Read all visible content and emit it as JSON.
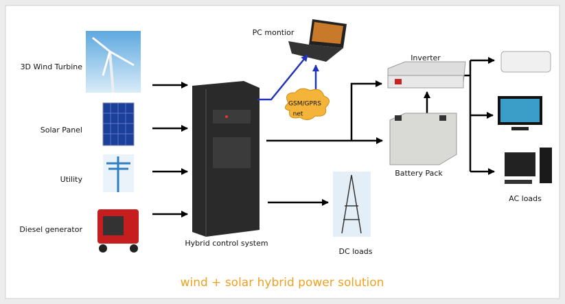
{
  "nodes": {
    "wind": {
      "label": "3D Wind Turbine"
    },
    "solar": {
      "label": "Solar Panel"
    },
    "utility": {
      "label": "Utility"
    },
    "diesel": {
      "label": "Diesel generator"
    },
    "controller": {
      "label": "Hybrid control system"
    },
    "pc": {
      "label": "PC montior"
    },
    "network": {
      "lines": [
        "GSM/GPRS",
        "net"
      ]
    },
    "inverter": {
      "label": "Inverter"
    },
    "battery": {
      "label": "Battery Pack"
    },
    "dc_loads": {
      "label": "DC loads"
    },
    "ac_loads": {
      "label": "AC loads"
    }
  },
  "caption": "wind + solar hybrid power solution"
}
